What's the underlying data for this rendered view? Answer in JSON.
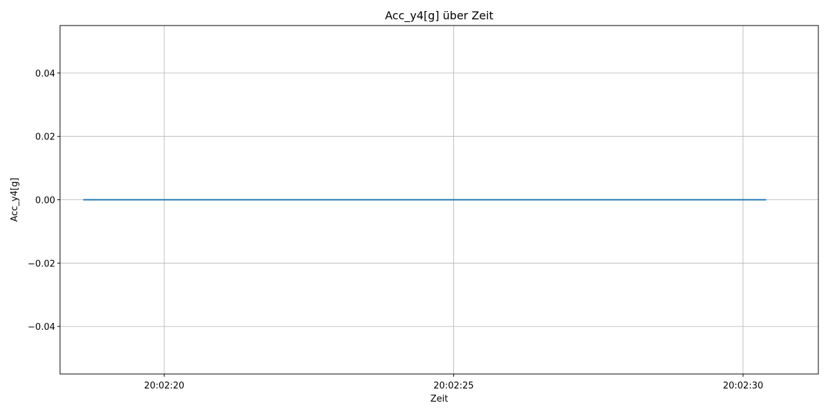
{
  "chart_data": {
    "type": "line",
    "title": "Acc_y4[g] über Zeit",
    "xlabel": "Zeit",
    "ylabel": "Acc_y4[g]",
    "x_ticks": [
      "20:02:20",
      "20:02:25",
      "20:02:30"
    ],
    "x_tick_values": [
      "20:02:20",
      "20:02:25",
      "20:02:30"
    ],
    "y_ticks": [
      "−0.04",
      "−0.02",
      "0.00",
      "0.02",
      "0.04"
    ],
    "y_tick_values": [
      -0.04,
      -0.02,
      0.0,
      0.02,
      0.04
    ],
    "xlim": [
      "20:02:18.2",
      "20:02:31.3"
    ],
    "ylim": [
      -0.055,
      0.055
    ],
    "grid": true,
    "series": [
      {
        "color": "#1f77b4",
        "x": [
          "20:02:18.6",
          "20:02:30.4"
        ],
        "y": [
          0.0,
          0.0
        ]
      }
    ]
  }
}
